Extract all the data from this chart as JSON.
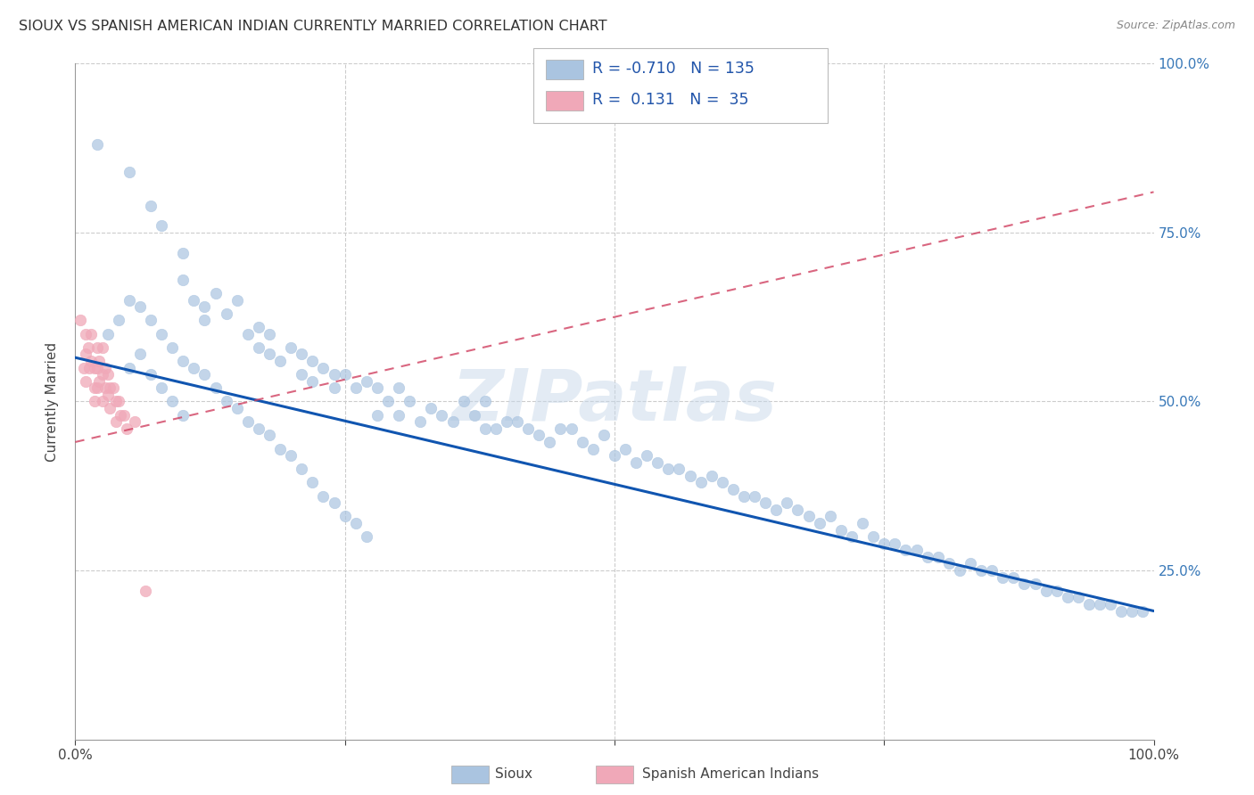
{
  "title": "SIOUX VS SPANISH AMERICAN INDIAN CURRENTLY MARRIED CORRELATION CHART",
  "source": "Source: ZipAtlas.com",
  "ylabel": "Currently Married",
  "xlim": [
    0,
    1
  ],
  "ylim": [
    0,
    1
  ],
  "sioux_color": "#aac4e0",
  "spanish_color": "#f0a8b8",
  "sioux_line_color": "#1055b0",
  "spanish_line_color": "#d04060",
  "R_sioux": -0.71,
  "N_sioux": 135,
  "R_spanish": 0.131,
  "N_spanish": 35,
  "watermark": "ZIPatlas",
  "sioux_x": [
    0.02,
    0.05,
    0.07,
    0.08,
    0.1,
    0.1,
    0.11,
    0.12,
    0.12,
    0.13,
    0.14,
    0.15,
    0.16,
    0.17,
    0.17,
    0.18,
    0.18,
    0.19,
    0.2,
    0.21,
    0.21,
    0.22,
    0.22,
    0.23,
    0.24,
    0.24,
    0.25,
    0.26,
    0.27,
    0.28,
    0.28,
    0.29,
    0.3,
    0.3,
    0.31,
    0.32,
    0.33,
    0.34,
    0.35,
    0.36,
    0.37,
    0.38,
    0.38,
    0.39,
    0.4,
    0.41,
    0.42,
    0.43,
    0.44,
    0.45,
    0.46,
    0.47,
    0.48,
    0.49,
    0.5,
    0.51,
    0.52,
    0.53,
    0.54,
    0.55,
    0.56,
    0.57,
    0.58,
    0.59,
    0.6,
    0.61,
    0.62,
    0.63,
    0.64,
    0.65,
    0.66,
    0.67,
    0.68,
    0.69,
    0.7,
    0.71,
    0.72,
    0.73,
    0.74,
    0.75,
    0.76,
    0.77,
    0.78,
    0.79,
    0.8,
    0.81,
    0.82,
    0.83,
    0.84,
    0.85,
    0.86,
    0.87,
    0.88,
    0.89,
    0.9,
    0.91,
    0.92,
    0.93,
    0.94,
    0.95,
    0.96,
    0.97,
    0.98,
    0.99,
    0.05,
    0.06,
    0.07,
    0.08,
    0.09,
    0.1,
    0.03,
    0.04,
    0.05,
    0.06,
    0.07,
    0.08,
    0.09,
    0.1,
    0.11,
    0.12,
    0.13,
    0.14,
    0.15,
    0.16,
    0.17,
    0.18,
    0.19,
    0.2,
    0.21,
    0.22,
    0.23,
    0.24,
    0.25,
    0.26,
    0.27
  ],
  "sioux_y": [
    0.88,
    0.84,
    0.79,
    0.76,
    0.72,
    0.68,
    0.65,
    0.64,
    0.62,
    0.66,
    0.63,
    0.65,
    0.6,
    0.61,
    0.58,
    0.6,
    0.57,
    0.56,
    0.58,
    0.57,
    0.54,
    0.56,
    0.53,
    0.55,
    0.52,
    0.54,
    0.54,
    0.52,
    0.53,
    0.52,
    0.48,
    0.5,
    0.52,
    0.48,
    0.5,
    0.47,
    0.49,
    0.48,
    0.47,
    0.5,
    0.48,
    0.46,
    0.5,
    0.46,
    0.47,
    0.47,
    0.46,
    0.45,
    0.44,
    0.46,
    0.46,
    0.44,
    0.43,
    0.45,
    0.42,
    0.43,
    0.41,
    0.42,
    0.41,
    0.4,
    0.4,
    0.39,
    0.38,
    0.39,
    0.38,
    0.37,
    0.36,
    0.36,
    0.35,
    0.34,
    0.35,
    0.34,
    0.33,
    0.32,
    0.33,
    0.31,
    0.3,
    0.32,
    0.3,
    0.29,
    0.29,
    0.28,
    0.28,
    0.27,
    0.27,
    0.26,
    0.25,
    0.26,
    0.25,
    0.25,
    0.24,
    0.24,
    0.23,
    0.23,
    0.22,
    0.22,
    0.21,
    0.21,
    0.2,
    0.2,
    0.2,
    0.19,
    0.19,
    0.19,
    0.55,
    0.57,
    0.54,
    0.52,
    0.5,
    0.48,
    0.6,
    0.62,
    0.65,
    0.64,
    0.62,
    0.6,
    0.58,
    0.56,
    0.55,
    0.54,
    0.52,
    0.5,
    0.49,
    0.47,
    0.46,
    0.45,
    0.43,
    0.42,
    0.4,
    0.38,
    0.36,
    0.35,
    0.33,
    0.32,
    0.3
  ],
  "spanish_x": [
    0.005,
    0.008,
    0.01,
    0.01,
    0.01,
    0.012,
    0.013,
    0.015,
    0.015,
    0.018,
    0.018,
    0.018,
    0.02,
    0.02,
    0.02,
    0.022,
    0.022,
    0.025,
    0.025,
    0.025,
    0.028,
    0.028,
    0.03,
    0.03,
    0.032,
    0.032,
    0.035,
    0.038,
    0.038,
    0.04,
    0.042,
    0.045,
    0.048,
    0.055,
    0.065
  ],
  "spanish_y": [
    0.62,
    0.55,
    0.6,
    0.57,
    0.53,
    0.58,
    0.55,
    0.6,
    0.56,
    0.55,
    0.52,
    0.5,
    0.58,
    0.55,
    0.52,
    0.56,
    0.53,
    0.58,
    0.54,
    0.5,
    0.55,
    0.52,
    0.54,
    0.51,
    0.52,
    0.49,
    0.52,
    0.5,
    0.47,
    0.5,
    0.48,
    0.48,
    0.46,
    0.47,
    0.22
  ],
  "sioux_line_x0": 0.0,
  "sioux_line_y0": 0.565,
  "sioux_line_x1": 1.0,
  "sioux_line_y1": 0.19,
  "spanish_line_x0": 0.0,
  "spanish_line_y0": 0.44,
  "spanish_line_x1": 1.0,
  "spanish_line_y1": 0.81
}
